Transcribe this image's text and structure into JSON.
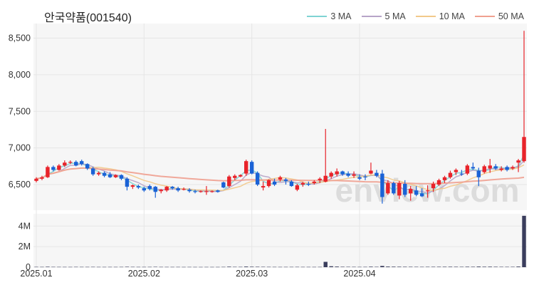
{
  "title": "안국약품(001540)",
  "watermark": "enview.com",
  "legend": [
    {
      "label": "3 MA",
      "color": "#7fd3d3"
    },
    {
      "label": "5 MA",
      "color": "#b7a4c8"
    },
    {
      "label": "10 MA",
      "color": "#f2c98a"
    },
    {
      "label": "50 MA",
      "color": "#f0a090"
    }
  ],
  "colors": {
    "up": "#e8232a",
    "down": "#1a62d6",
    "volume": "#3a3d5c",
    "panel_bg": "#f6f6f6"
  },
  "chart_data": {
    "type": "candlestick",
    "title": "안국약품(001540)",
    "price_axis": {
      "ylim": [
        6150,
        8700
      ],
      "ticks": [
        6500,
        7000,
        7500,
        8000,
        8500
      ],
      "tick_labels": [
        "6,500",
        "7,000",
        "7,500",
        "8,000",
        "8,500"
      ]
    },
    "volume_axis": {
      "ylim": [
        0,
        5200000
      ],
      "ticks": [
        0,
        2000000,
        4000000
      ],
      "tick_labels": [
        "0",
        "2M",
        "4M"
      ]
    },
    "x_axis": {
      "tick_indices": [
        0,
        19,
        38,
        57
      ],
      "tick_labels": [
        "2025.01",
        "2025.02",
        "2025.03",
        "2025.04"
      ]
    },
    "grid": true,
    "legend_position": "top-right",
    "ohlc": [
      [
        6550,
        6600,
        6530,
        6580
      ],
      [
        6580,
        6620,
        6560,
        6600
      ],
      [
        6600,
        6760,
        6590,
        6740
      ],
      [
        6740,
        6760,
        6680,
        6700
      ],
      [
        6700,
        6780,
        6690,
        6760
      ],
      [
        6760,
        6830,
        6740,
        6800
      ],
      [
        6800,
        6830,
        6780,
        6810
      ],
      [
        6810,
        6830,
        6750,
        6760
      ],
      [
        6820,
        6840,
        6760,
        6780
      ],
      [
        6780,
        6790,
        6700,
        6720
      ],
      [
        6720,
        6740,
        6620,
        6640
      ],
      [
        6640,
        6680,
        6620,
        6660
      ],
      [
        6660,
        6680,
        6600,
        6620
      ],
      [
        6640,
        6670,
        6590,
        6600
      ],
      [
        6600,
        6640,
        6590,
        6630
      ],
      [
        6630,
        6640,
        6560,
        6580
      ],
      [
        6580,
        6600,
        6420,
        6470
      ],
      [
        6470,
        6500,
        6440,
        6490
      ],
      [
        6480,
        6500,
        6440,
        6460
      ],
      [
        6450,
        6470,
        6400,
        6420
      ],
      [
        6480,
        6500,
        6420,
        6440
      ],
      [
        6470,
        6480,
        6320,
        6400
      ],
      [
        6410,
        6440,
        6380,
        6430
      ],
      [
        6420,
        6480,
        6400,
        6470
      ],
      [
        6470,
        6480,
        6430,
        6450
      ],
      [
        6450,
        6470,
        6400,
        6420
      ],
      [
        6440,
        6460,
        6420,
        6440
      ],
      [
        6430,
        6450,
        6390,
        6410
      ],
      [
        6410,
        6430,
        6380,
        6400
      ],
      [
        6400,
        6420,
        6390,
        6410
      ],
      [
        6400,
        6480,
        6360,
        6410
      ],
      [
        6400,
        6420,
        6390,
        6410
      ],
      [
        6420,
        6430,
        6390,
        6400
      ],
      [
        6530,
        6540,
        6450,
        6460
      ],
      [
        6480,
        6630,
        6460,
        6610
      ],
      [
        6590,
        6640,
        6560,
        6620
      ],
      [
        6610,
        6640,
        6600,
        6630
      ],
      [
        6650,
        6840,
        6620,
        6820
      ],
      [
        6810,
        6830,
        6640,
        6650
      ],
      [
        6660,
        6680,
        6480,
        6500
      ],
      [
        6460,
        6540,
        6420,
        6480
      ],
      [
        6480,
        6570,
        6460,
        6560
      ],
      [
        6540,
        6580,
        6480,
        6500
      ],
      [
        6570,
        6620,
        6540,
        6600
      ],
      [
        6570,
        6590,
        6500,
        6550
      ],
      [
        6540,
        6560,
        6470,
        6480
      ],
      [
        6430,
        6510,
        6410,
        6490
      ],
      [
        6500,
        6540,
        6470,
        6520
      ],
      [
        6510,
        6540,
        6480,
        6500
      ],
      [
        6520,
        6560,
        6500,
        6540
      ],
      [
        6560,
        6600,
        6520,
        6580
      ],
      [
        6540,
        7260,
        6530,
        6620
      ],
      [
        6610,
        6680,
        6580,
        6660
      ],
      [
        6640,
        6720,
        6610,
        6680
      ],
      [
        6680,
        6690,
        6620,
        6640
      ],
      [
        6650,
        6680,
        6600,
        6620
      ],
      [
        6620,
        6680,
        6590,
        6640
      ],
      [
        6600,
        6640,
        6560,
        6580
      ],
      [
        6610,
        6640,
        6560,
        6600
      ],
      [
        6650,
        6800,
        6640,
        6690
      ],
      [
        6660,
        6700,
        6600,
        6620
      ],
      [
        6650,
        6700,
        6240,
        6330
      ],
      [
        6380,
        6560,
        6360,
        6520
      ],
      [
        6520,
        6540,
        6360,
        6380
      ],
      [
        6350,
        6550,
        6300,
        6520
      ],
      [
        6510,
        6560,
        6330,
        6360
      ],
      [
        6380,
        6480,
        6280,
        6440
      ],
      [
        6420,
        6480,
        6340,
        6360
      ],
      [
        6380,
        6450,
        6330,
        6340
      ],
      [
        6410,
        6490,
        6320,
        6420
      ],
      [
        6450,
        6540,
        6400,
        6510
      ],
      [
        6500,
        6580,
        6480,
        6560
      ],
      [
        6560,
        6620,
        6520,
        6600
      ],
      [
        6600,
        6690,
        6580,
        6660
      ],
      [
        6670,
        6720,
        6630,
        6700
      ],
      [
        6650,
        6700,
        6620,
        6640
      ],
      [
        6650,
        6780,
        6630,
        6760
      ],
      [
        6740,
        6800,
        6700,
        6720
      ],
      [
        6690,
        6730,
        6480,
        6600
      ],
      [
        6670,
        6770,
        6650,
        6750
      ],
      [
        6720,
        6850,
        6660,
        6760
      ],
      [
        6750,
        6780,
        6700,
        6720
      ],
      [
        6700,
        6750,
        6680,
        6720
      ],
      [
        6740,
        6760,
        6680,
        6700
      ],
      [
        6720,
        6760,
        6700,
        6740
      ],
      [
        6800,
        6850,
        6670,
        6830
      ],
      [
        6820,
        8600,
        6800,
        7150
      ]
    ],
    "volume": [
      30000,
      28000,
      45000,
      30000,
      28000,
      26000,
      25000,
      30000,
      28000,
      27000,
      30000,
      25000,
      24000,
      26000,
      25000,
      28000,
      40000,
      30000,
      26000,
      25000,
      28000,
      35000,
      27000,
      25000,
      24000,
      25000,
      22000,
      24000,
      22000,
      21000,
      23000,
      22000,
      22000,
      28000,
      50000,
      32000,
      30000,
      60000,
      45000,
      40000,
      35000,
      30000,
      28000,
      26000,
      27000,
      28000,
      30000,
      27000,
      26000,
      25000,
      28000,
      520000,
      90000,
      60000,
      40000,
      35000,
      32000,
      28000,
      30000,
      50000,
      35000,
      120000,
      60000,
      50000,
      45000,
      40000,
      38000,
      35000,
      33000,
      36000,
      38000,
      40000,
      42000,
      44000,
      40000,
      36000,
      45000,
      40000,
      60000,
      45000,
      50000,
      40000,
      35000,
      33000,
      35000,
      60000,
      5000000
    ]
  }
}
